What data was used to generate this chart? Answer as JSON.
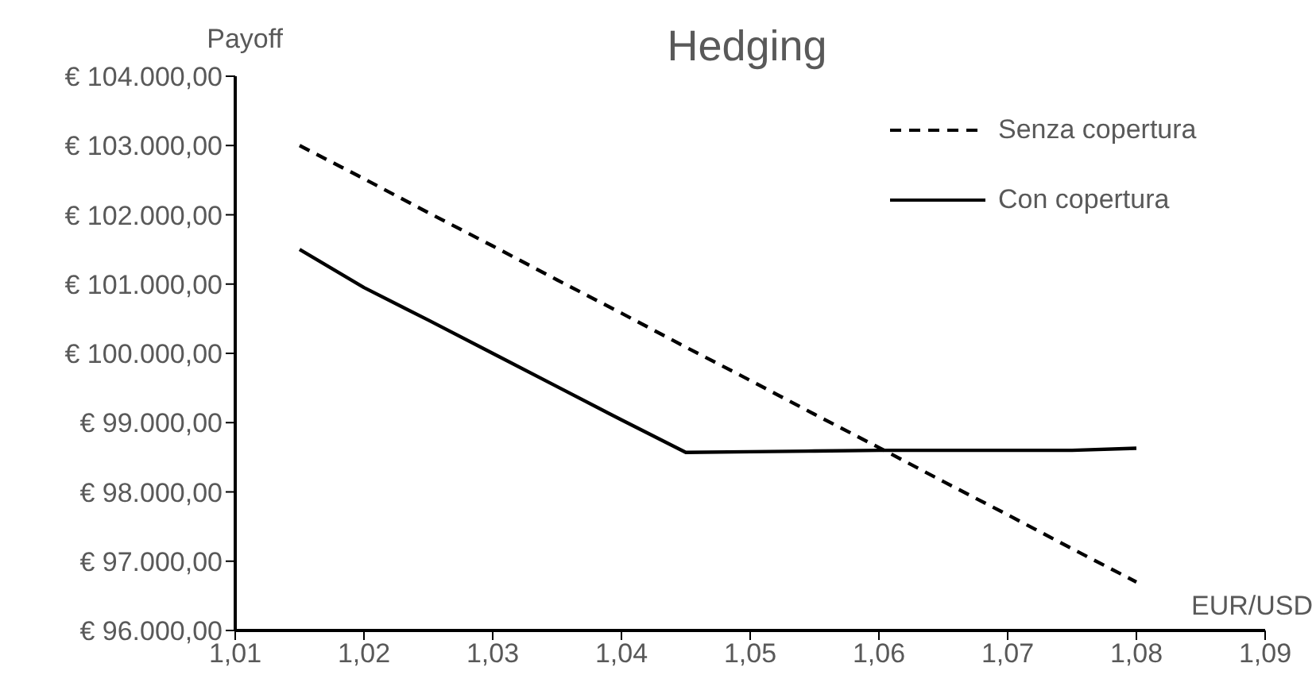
{
  "chart_data": {
    "type": "line",
    "title": "Hedging",
    "xlabel": "EUR/USD",
    "ylabel": "Payoff",
    "x": [
      1.015,
      1.02,
      1.025,
      1.03,
      1.035,
      1.04,
      1.045,
      1.05,
      1.055,
      1.06,
      1.065,
      1.07,
      1.075,
      1.08
    ],
    "series": [
      {
        "name": "Senza copertura",
        "color": "#000000",
        "line_style": "dashed",
        "values": [
          103000,
          102520,
          102030,
          101550,
          101060,
          100580,
          100090,
          99610,
          99120,
          98640,
          98150,
          97670,
          97180,
          96700
        ]
      },
      {
        "name": "Con copertura",
        "color": "#000000",
        "line_style": "solid",
        "values": [
          101500,
          100950,
          100480,
          100000,
          99520,
          99040,
          98570,
          98580,
          98590,
          98600,
          98600,
          98600,
          98600,
          98630
        ]
      }
    ],
    "xlim": [
      1.01,
      1.09
    ],
    "xticks": [
      {
        "value": 1.01,
        "label": "1,01"
      },
      {
        "value": 1.02,
        "label": "1,02"
      },
      {
        "value": 1.03,
        "label": "1,03"
      },
      {
        "value": 1.04,
        "label": "1,04"
      },
      {
        "value": 1.05,
        "label": "1,05"
      },
      {
        "value": 1.06,
        "label": "1,06"
      },
      {
        "value": 1.07,
        "label": "1,07"
      },
      {
        "value": 1.08,
        "label": "1,08"
      },
      {
        "value": 1.09,
        "label": "1,09"
      }
    ],
    "ylim": [
      96000,
      104000
    ],
    "yticks": [
      {
        "value": 96000,
        "label": "€ 96.000,00"
      },
      {
        "value": 97000,
        "label": "€ 97.000,00"
      },
      {
        "value": 98000,
        "label": "€ 98.000,00"
      },
      {
        "value": 99000,
        "label": "€ 99.000,00"
      },
      {
        "value": 100000,
        "label": "€ 100.000,00"
      },
      {
        "value": 101000,
        "label": "€ 101.000,00"
      },
      {
        "value": 102000,
        "label": "€ 102.000,00"
      },
      {
        "value": 103000,
        "label": "€ 103.000,00"
      },
      {
        "value": 104000,
        "label": "€ 104.000,00"
      }
    ],
    "grid": false,
    "legend": "top right",
    "marker": "none"
  }
}
